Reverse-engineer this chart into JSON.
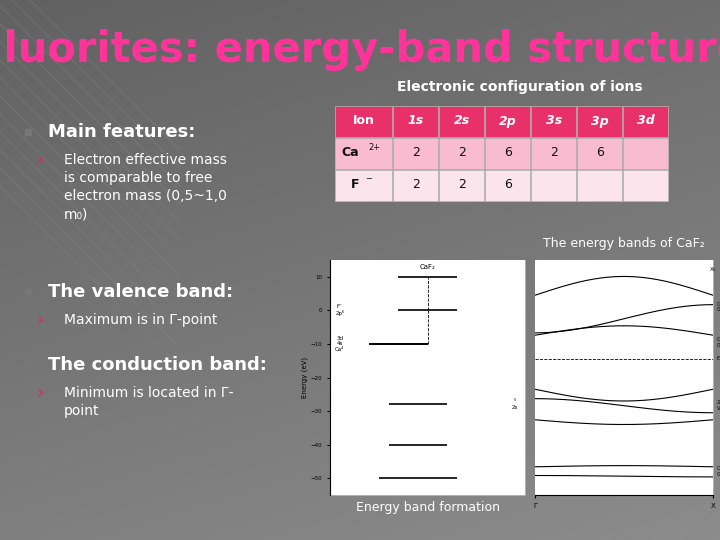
{
  "title": "Fluorites: energy-band structure",
  "title_color": "#FF3399",
  "subtitle": "Electronic configuration of ions",
  "subtitle_color": "#FFFFFF",
  "bg_color_main": "#666666",
  "bg_color_top": "#4a4a4a",
  "table_header_bg": "#E8306A",
  "table_header_fg": "#FFFFFF",
  "table_row1_bg": "#F8BBD0",
  "table_row2_bg": "#FCE4EC",
  "table_border_color": "#AAAAAA",
  "table_text_color": "#111111",
  "table_cols": [
    "Ion",
    "1s",
    "2s",
    "2p",
    "3s",
    "3p",
    "3d"
  ],
  "table_col_italic": [
    false,
    true,
    true,
    true,
    true,
    true,
    true
  ],
  "bullet_color": "#888888",
  "arrow_color": "#CC3366",
  "text_color": "#FFFFFF",
  "bullet1": "Main features:",
  "sub1_line1": "Electron effective mass",
  "sub1_line2": "is comparable to free",
  "sub1_line3": "electron mass (0,5~1,0",
  "sub1_line4": "m₀)",
  "bullet2": "The valence band:",
  "sub2": "Maximum is in Γ-point",
  "bullet3": "The conduction band:",
  "sub3_line1": "Minimum is located in Γ-",
  "sub3_line2": "point",
  "image1_label": "Energy band formation",
  "image2_label": "The energy bands of CaF₂"
}
